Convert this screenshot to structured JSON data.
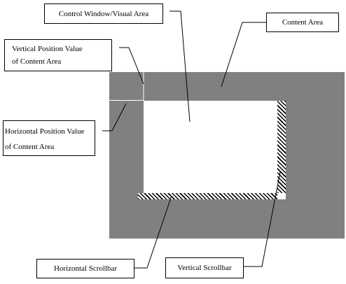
{
  "diagram": {
    "labels": {
      "control_window": "Control Window/Visual Area",
      "content_area": "Content Area",
      "vertical_position_line1": "Vertical Position Value",
      "vertical_position_line2": "of Content Area",
      "horizontal_position_line1": "Horizontal Position Value",
      "horizontal_position_line2": "of Content Area",
      "horizontal_scrollbar": "Horizontal Scrollbar",
      "vertical_scrollbar": "Vertical Scrollbar"
    },
    "colors": {
      "content_area": "#808080",
      "visual_area": "#ffffff",
      "scrollbar_hatch": "#000000",
      "position_markers": "#ffffff"
    }
  }
}
